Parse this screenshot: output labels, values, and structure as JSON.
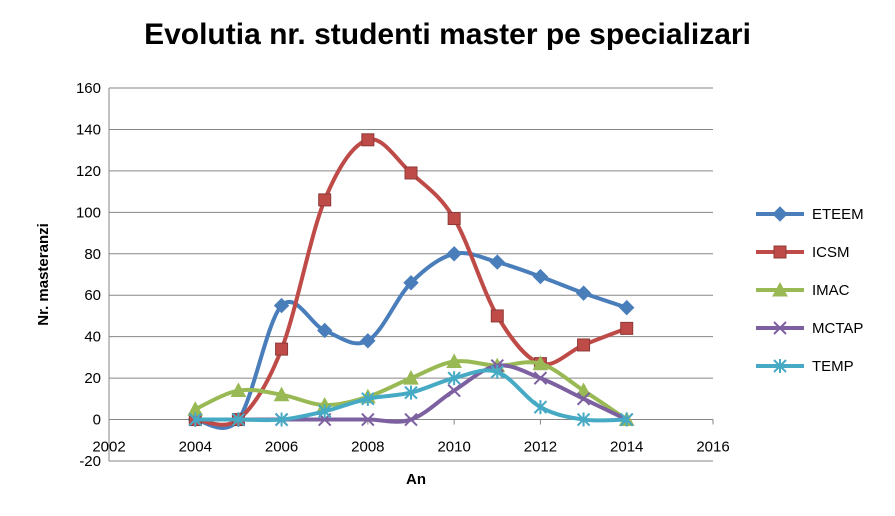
{
  "chart_data": {
    "type": "line",
    "title": "Evolutia nr. studenti master pe specializari",
    "xlabel": "An",
    "ylabel": "Nr. masteranzi",
    "xlim": [
      2002,
      2016
    ],
    "ylim": [
      -20,
      160
    ],
    "x_ticks": [
      2002,
      2004,
      2006,
      2008,
      2010,
      2012,
      2014,
      2016
    ],
    "y_ticks": [
      -20,
      0,
      20,
      40,
      60,
      80,
      100,
      120,
      140,
      160
    ],
    "grid": "horizontal",
    "smooth": true,
    "legend_position": "right",
    "x": [
      2004,
      2005,
      2006,
      2007,
      2008,
      2009,
      2010,
      2011,
      2012,
      2013,
      2014
    ],
    "series": [
      {
        "name": "ETEEM",
        "color": "#4A7EBB",
        "marker": "diamond",
        "values": [
          0,
          0,
          55,
          43,
          38,
          66,
          80,
          76,
          69,
          61,
          54
        ]
      },
      {
        "name": "ICSM",
        "color": "#BE4B48",
        "marker": "square",
        "values": [
          0,
          0,
          34,
          106,
          135,
          119,
          97,
          50,
          27,
          36,
          44
        ]
      },
      {
        "name": "IMAC",
        "color": "#98B954",
        "marker": "triangle",
        "values": [
          5,
          14,
          12,
          7,
          11,
          20,
          28,
          26,
          27,
          14,
          0
        ]
      },
      {
        "name": "MCTAP",
        "color": "#7D60A0",
        "marker": "x",
        "values": [
          0,
          0,
          0,
          0,
          0,
          0,
          14,
          26,
          20,
          10,
          0
        ]
      },
      {
        "name": "TEMP",
        "color": "#46AAC5",
        "marker": "star",
        "values": [
          0,
          0,
          0,
          4,
          10,
          13,
          20,
          23,
          6,
          0,
          0
        ]
      }
    ]
  }
}
